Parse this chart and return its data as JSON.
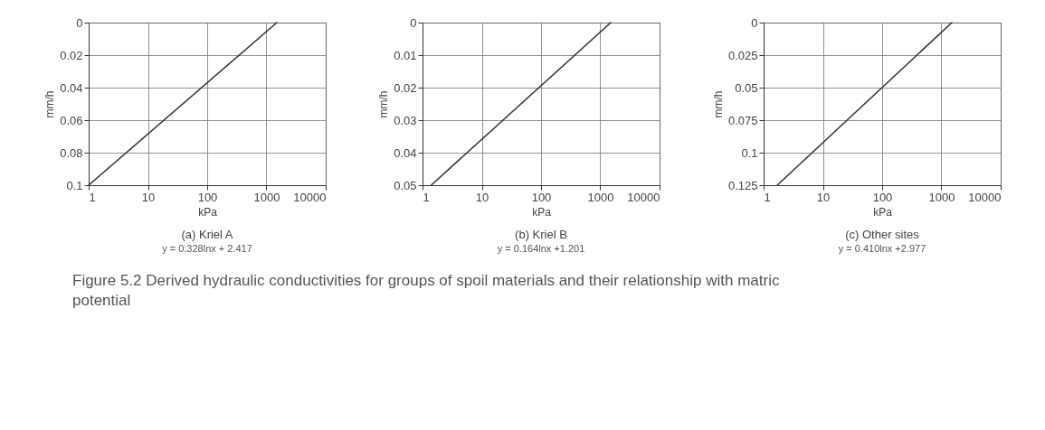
{
  "chart_data": [
    {
      "type": "line",
      "xlabel": "kPa",
      "ylabel": "mm/h",
      "x": [
        1,
        1500
      ],
      "series": [
        {
          "color": "#333333",
          "values": [
            0.1,
            0
          ]
        }
      ],
      "xlim": [
        1,
        10000
      ],
      "xticks": [
        1,
        10,
        100,
        1000,
        10000
      ],
      "ylim": [
        0.1,
        0
      ],
      "yticks": [
        0,
        0.02,
        0.04,
        0.06,
        0.08,
        0.1
      ],
      "log": "x",
      "grid": true,
      "annotations": [
        "(a)  Kriel A",
        "y = 0.328lnx + 2.417",
        "Figure  5.2  Derived hydraulic conductivities for groups of spoil materials  and their relationship with matric potential"
      ]
    },
    {
      "type": "line",
      "xlabel": "kPa",
      "ylabel": "mm/h",
      "x": [
        1.4,
        1500
      ],
      "series": [
        {
          "color": "#333333",
          "values": [
            0.05,
            0
          ]
        }
      ],
      "xlim": [
        1,
        10000
      ],
      "xticks": [
        1,
        10,
        100,
        1000,
        10000
      ],
      "ylim": [
        0.05,
        0
      ],
      "yticks": [
        0,
        0.01,
        0.02,
        0.03,
        0.04,
        0.05
      ],
      "log": "x",
      "grid": true,
      "annotations": [
        "(b)  Kriel B",
        "y = 0.164lnx +1.201"
      ]
    },
    {
      "type": "line",
      "xlabel": "kPa",
      "ylabel": "mm/h",
      "x": [
        1.7,
        1500
      ],
      "series": [
        {
          "color": "#333333",
          "values": [
            0.125,
            0
          ]
        }
      ],
      "xlim": [
        1,
        10000
      ],
      "xticks": [
        1,
        10,
        100,
        1000,
        10000
      ],
      "ylim": [
        0.125,
        0
      ],
      "yticks": [
        0,
        0.025,
        0.05,
        0.075,
        0.1,
        0.125
      ],
      "log": "x",
      "grid": true,
      "annotations": [
        "(c) Other sites",
        "y = 0.410lnx +2.977"
      ]
    }
  ]
}
